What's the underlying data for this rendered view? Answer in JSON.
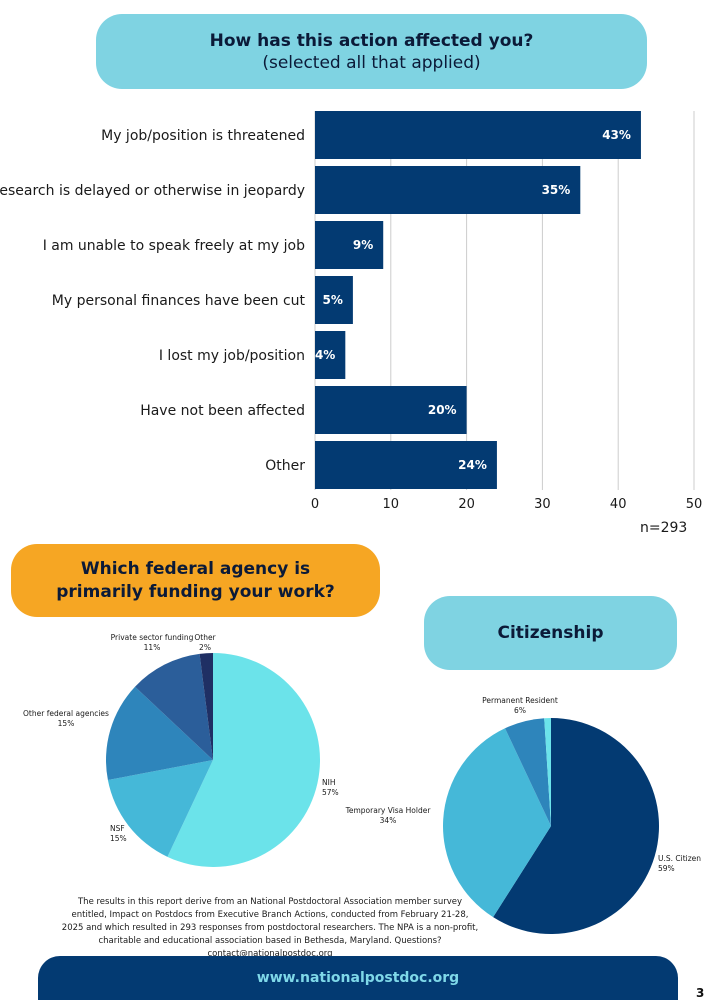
{
  "section1": {
    "title_line1": "How has this action affected you?",
    "title_line2": "(selected all that applied)",
    "n_label": "n=293"
  },
  "section2": {
    "title_line1": "Which federal agency is",
    "title_line2": "primarily funding your work?"
  },
  "section3": {
    "title": "Citizenship"
  },
  "chart_data": [
    {
      "type": "bar",
      "orientation": "horizontal",
      "categories": [
        "My job/position is threatened",
        "My research is delayed or otherwise in jeopardy",
        "I am unable to speak freely at my job",
        "My personal finances have been cut",
        "I lost my job/position",
        "Have not been affected",
        "Other"
      ],
      "values": [
        43,
        35,
        9,
        5,
        4,
        20,
        24
      ],
      "data_labels": [
        "43%",
        "35%",
        "9%",
        "5%",
        "4%",
        "20%",
        "24%"
      ],
      "xlim": [
        0,
        50
      ],
      "xticks": [
        0,
        10,
        20,
        30,
        40,
        50
      ],
      "grid": "vertical",
      "color": "#033a72"
    },
    {
      "type": "pie",
      "slices": [
        {
          "name": "NIH",
          "label": "57%",
          "value": 57,
          "color": "#6be3ea"
        },
        {
          "name": "NSF",
          "label": "15%",
          "value": 15,
          "color": "#45b8d8"
        },
        {
          "name": "Other federal agencies",
          "label": "15%",
          "value": 15,
          "color": "#2e85bb"
        },
        {
          "name": "Private sector funding",
          "label": "11%",
          "value": 11,
          "color": "#2b5e9a"
        },
        {
          "name": "Other",
          "label": "2%",
          "value": 2,
          "color": "#1f2f64"
        }
      ]
    },
    {
      "type": "pie",
      "slices": [
        {
          "name": "U.S. Citizen",
          "label": "59%",
          "value": 59,
          "color": "#033a72"
        },
        {
          "name": "Temporary Visa Holder",
          "label": "34%",
          "value": 34,
          "color": "#45b8d8"
        },
        {
          "name": "Permanent Resident",
          "label": "6%",
          "value": 6,
          "color": "#2e85bb"
        },
        {
          "name": "",
          "label": "",
          "value": 1,
          "color": "#6be3ea"
        }
      ]
    }
  ],
  "footer": {
    "text_main": "The results in this report derive from an National Postdoctoral Association member survey entitled, Impact on Postdocs from Executive Branch Actions, conducted from February 21-28, 2025 and which resulted in 293 responses from postdoctoral researchers. The NPA is a non-profit, charitable and educational association based in Bethesda, Maryland. Questions?",
    "email": "contact@nationalpostdoc.org",
    "url": "www.nationalpostdoc.org",
    "page_number": "3"
  }
}
